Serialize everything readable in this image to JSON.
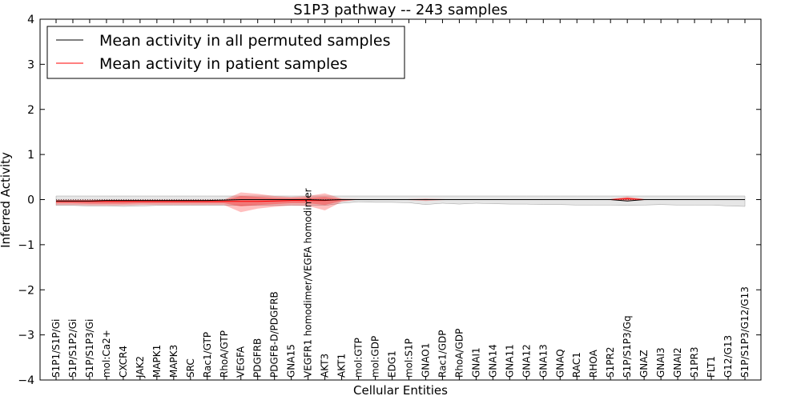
{
  "chart_data": {
    "type": "line",
    "title": "S1P3 pathway -- 243 samples",
    "xlabel": "Cellular Entities",
    "ylabel": "Inferred Activity",
    "ylim": [
      -4,
      4
    ],
    "yticks": [
      4,
      3,
      2,
      1,
      0,
      -1,
      -2,
      -3,
      -4
    ],
    "ytick_labels": [
      "4",
      "3",
      "2",
      "1",
      "0",
      "−1",
      "−2",
      "−3",
      "−4"
    ],
    "legend_position": "top-left",
    "categories": [
      "S1P1/S1P/Gi",
      "S1P/S1P2/Gi",
      "S1P/S1P3/Gi",
      "mol:Ca2+",
      "CXCR4",
      "JAK2",
      "MAPK1",
      "MAPK3",
      "SRC",
      "Rac1/GTP",
      "RhoA/GTP",
      "VEGFA",
      "PDGFRB",
      "PDGFB-D/PDGFRB",
      "GNA15",
      "VEGFR1 homodimer/VEGFA homodimer",
      "AKT3",
      "AKT1",
      "mol:GTP",
      "mol:GDP",
      "EDG1",
      "mol:S1P",
      "GNAO1",
      "Rac1/GDP",
      "RhoA/GDP",
      "GNAI1",
      "GNA14",
      "GNA11",
      "GNA12",
      "GNA13",
      "GNAQ",
      "RAC1",
      "RHOA",
      "S1PR2",
      "S1P/S1P3/Gq",
      "GNAZ",
      "GNAI3",
      "GNAI2",
      "S1PR3",
      "FLT1",
      "G12/G13",
      "S1P/S1P3/G12/G13"
    ],
    "series": [
      {
        "name": "Mean activity in all permuted samples",
        "color": "#000000",
        "values": [
          -0.03,
          -0.03,
          -0.03,
          -0.02,
          -0.02,
          -0.02,
          -0.02,
          -0.02,
          -0.02,
          -0.02,
          -0.01,
          0.0,
          0.0,
          0.0,
          0.0,
          0.0,
          -0.01,
          0.0,
          0.0,
          0.0,
          0.0,
          0.0,
          0.0,
          0.0,
          0.0,
          0.0,
          0.0,
          0.0,
          0.0,
          0.0,
          0.0,
          0.0,
          0.0,
          0.0,
          -0.03,
          0.0,
          0.0,
          0.0,
          0.0,
          0.0,
          0.0,
          0.0
        ],
        "band_upper": [
          0.08,
          0.08,
          0.08,
          0.08,
          0.08,
          0.08,
          0.08,
          0.08,
          0.08,
          0.08,
          0.08,
          0.08,
          0.08,
          0.08,
          0.08,
          0.08,
          0.08,
          0.08,
          0.08,
          0.08,
          0.08,
          0.08,
          0.08,
          0.08,
          0.08,
          0.08,
          0.08,
          0.08,
          0.08,
          0.08,
          0.08,
          0.08,
          0.08,
          0.08,
          0.08,
          0.08,
          0.08,
          0.08,
          0.08,
          0.08,
          0.08,
          0.08
        ],
        "band_lower": [
          -0.13,
          -0.13,
          -0.14,
          -0.14,
          -0.15,
          -0.14,
          -0.13,
          -0.13,
          -0.13,
          -0.13,
          -0.13,
          -0.13,
          -0.13,
          -0.13,
          -0.13,
          -0.13,
          -0.13,
          -0.08,
          -0.05,
          -0.06,
          -0.06,
          -0.07,
          -0.11,
          -0.08,
          -0.1,
          -0.08,
          -0.09,
          -0.1,
          -0.1,
          -0.11,
          -0.11,
          -0.12,
          -0.12,
          -0.12,
          -0.13,
          -0.12,
          -0.11,
          -0.12,
          -0.12,
          -0.12,
          -0.14,
          -0.15
        ]
      },
      {
        "name": "Mean activity in patient samples",
        "color": "#ff0000",
        "values": [
          -0.04,
          -0.04,
          -0.04,
          -0.04,
          -0.04,
          -0.04,
          -0.04,
          -0.04,
          -0.04,
          -0.04,
          -0.04,
          -0.04,
          -0.04,
          -0.03,
          -0.02,
          -0.02,
          -0.02,
          0.0,
          0.0,
          0.0,
          0.0,
          0.0,
          0.0,
          0.0,
          0.0,
          0.0,
          0.0,
          0.0,
          0.0,
          0.0,
          0.0,
          0.0,
          0.0,
          0.0,
          0.02,
          0.0,
          0.0,
          0.0,
          0.0,
          0.0,
          0.0,
          0.0
        ],
        "inner_upper": [
          -0.01,
          -0.01,
          -0.01,
          -0.01,
          -0.01,
          -0.01,
          -0.01,
          -0.01,
          -0.01,
          -0.01,
          -0.01,
          0.08,
          0.06,
          0.04,
          0.03,
          0.04,
          0.06,
          0.01,
          0.0,
          0.0,
          0.0,
          0.0,
          0.01,
          0.0,
          0.0,
          0.0,
          0.0,
          0.0,
          0.0,
          0.0,
          0.0,
          0.0,
          0.0,
          0.0,
          0.04,
          0.0,
          0.0,
          0.0,
          0.0,
          0.0,
          0.0,
          0.0
        ],
        "inner_lower": [
          -0.08,
          -0.08,
          -0.09,
          -0.09,
          -0.09,
          -0.08,
          -0.08,
          -0.08,
          -0.08,
          -0.08,
          -0.08,
          -0.15,
          -0.12,
          -0.1,
          -0.08,
          -0.08,
          -0.12,
          -0.03,
          0.0,
          0.0,
          0.0,
          0.0,
          -0.01,
          0.0,
          0.0,
          0.0,
          0.0,
          0.0,
          0.0,
          0.0,
          0.0,
          0.0,
          0.0,
          0.0,
          -0.01,
          0.0,
          0.0,
          0.0,
          0.0,
          0.0,
          0.0,
          0.0
        ],
        "outer_upper": [
          0.0,
          0.0,
          0.0,
          0.0,
          0.0,
          0.0,
          0.0,
          0.0,
          0.0,
          0.0,
          0.0,
          0.16,
          0.13,
          0.08,
          0.06,
          0.08,
          0.14,
          0.02,
          0.01,
          0.0,
          0.0,
          0.01,
          0.02,
          0.01,
          0.0,
          0.0,
          0.0,
          0.0,
          0.0,
          0.0,
          0.0,
          0.0,
          0.0,
          0.01,
          0.07,
          0.01,
          0.0,
          0.0,
          0.0,
          0.0,
          0.0,
          0.0
        ],
        "outer_lower": [
          -0.12,
          -0.12,
          -0.13,
          -0.13,
          -0.13,
          -0.12,
          -0.12,
          -0.12,
          -0.12,
          -0.12,
          -0.12,
          -0.28,
          -0.2,
          -0.16,
          -0.13,
          -0.14,
          -0.24,
          -0.05,
          0.0,
          0.0,
          0.0,
          -0.01,
          -0.03,
          -0.01,
          0.0,
          0.0,
          0.0,
          0.0,
          0.0,
          0.0,
          0.0,
          0.0,
          0.0,
          -0.01,
          -0.03,
          -0.01,
          0.0,
          0.0,
          0.0,
          0.0,
          0.0,
          0.0
        ]
      }
    ],
    "reference_line": 0
  }
}
